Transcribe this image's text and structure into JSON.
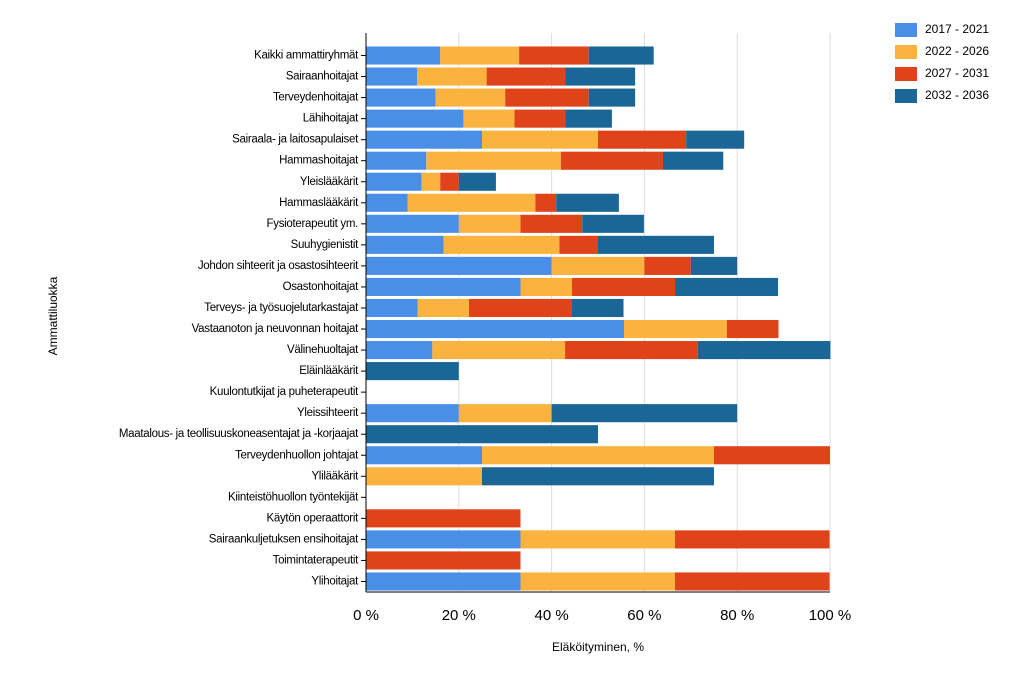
{
  "chart_data": {
    "type": "stacked-bar-horizontal",
    "x_label": "Eläköityminen, %",
    "y_label": "Ammattiluokka",
    "categories": [
      "Kaikki ammattiryhmät",
      "Sairaanhoitajat",
      "Terveydenhoitajat",
      "Lähihoitajat",
      "Sairaala- ja laitosapulaiset",
      "Hammashoitajat",
      "Yleislääkärit",
      "Hammaslääkärit",
      "Fysioterapeutit ym.",
      "Suuhygienistit",
      "Johdon sihteerit ja osastosihteerit",
      "Osastonhoitajat",
      "Terveys- ja työsuojelutarkastajat",
      "Vastaanoton ja neuvonnan hoitajat",
      "Välinehuoltajat",
      "Eläinlääkärit",
      "Kuulontutkijat ja puheterapeutit",
      "Yleissihteerit",
      "Maatalous- ja teollisuuskoneasentajat ja -korjaajat",
      "Terveydenhuollon johtajat",
      "Ylilääkärit",
      "Kiinteistöhuollon työntekijät",
      "Käytön operaattorit",
      "Sairaankuljetuksen ensihoitajat",
      "Toimintaterapeutit",
      "Ylihoitajat"
    ],
    "series": [
      {
        "name": "2017 - 2021",
        "color": "#4a8fe7",
        "values": [
          16,
          11,
          15,
          21,
          25,
          13,
          12,
          9,
          20,
          16.7,
          40,
          33.3,
          11.1,
          55.6,
          14.3,
          0,
          0,
          20,
          0,
          25,
          0,
          0,
          0,
          33.3,
          0,
          33.3
        ]
      },
      {
        "name": "2022 - 2026",
        "color": "#fbb33f",
        "values": [
          17,
          15,
          15,
          11,
          25,
          29,
          4,
          27.5,
          13.3,
          25,
          20,
          11.1,
          11.1,
          22.2,
          28.6,
          0,
          0,
          20,
          0,
          50,
          25,
          0,
          0,
          33.3,
          0,
          33.3
        ]
      },
      {
        "name": "2027 - 2031",
        "color": "#e0421a",
        "values": [
          15,
          17,
          18,
          11,
          19,
          22,
          4,
          4.5,
          13.3,
          8.3,
          10,
          22.2,
          22.2,
          11.1,
          28.6,
          0,
          0,
          0,
          0,
          25,
          0,
          0,
          33.3,
          33.3,
          33.3,
          33.3
        ]
      },
      {
        "name": "2032 - 2036",
        "color": "#1a6696",
        "values": [
          14,
          15,
          10,
          10,
          12.5,
          13,
          8,
          13.5,
          13.3,
          25,
          10,
          22.2,
          11.1,
          0,
          28.6,
          20,
          0,
          40,
          50,
          0,
          50,
          0,
          0,
          0,
          0,
          0
        ]
      }
    ],
    "xlim": [
      0,
      100
    ],
    "xticks": [
      {
        "value": 0,
        "label": "0 %"
      },
      {
        "value": 20,
        "label": "20 %"
      },
      {
        "value": 40,
        "label": "40 %"
      },
      {
        "value": 60,
        "label": "60 %"
      },
      {
        "value": 80,
        "label": "80 %"
      },
      {
        "value": 100,
        "label": "100 %"
      }
    ],
    "grid": true,
    "legend": "top-right"
  }
}
